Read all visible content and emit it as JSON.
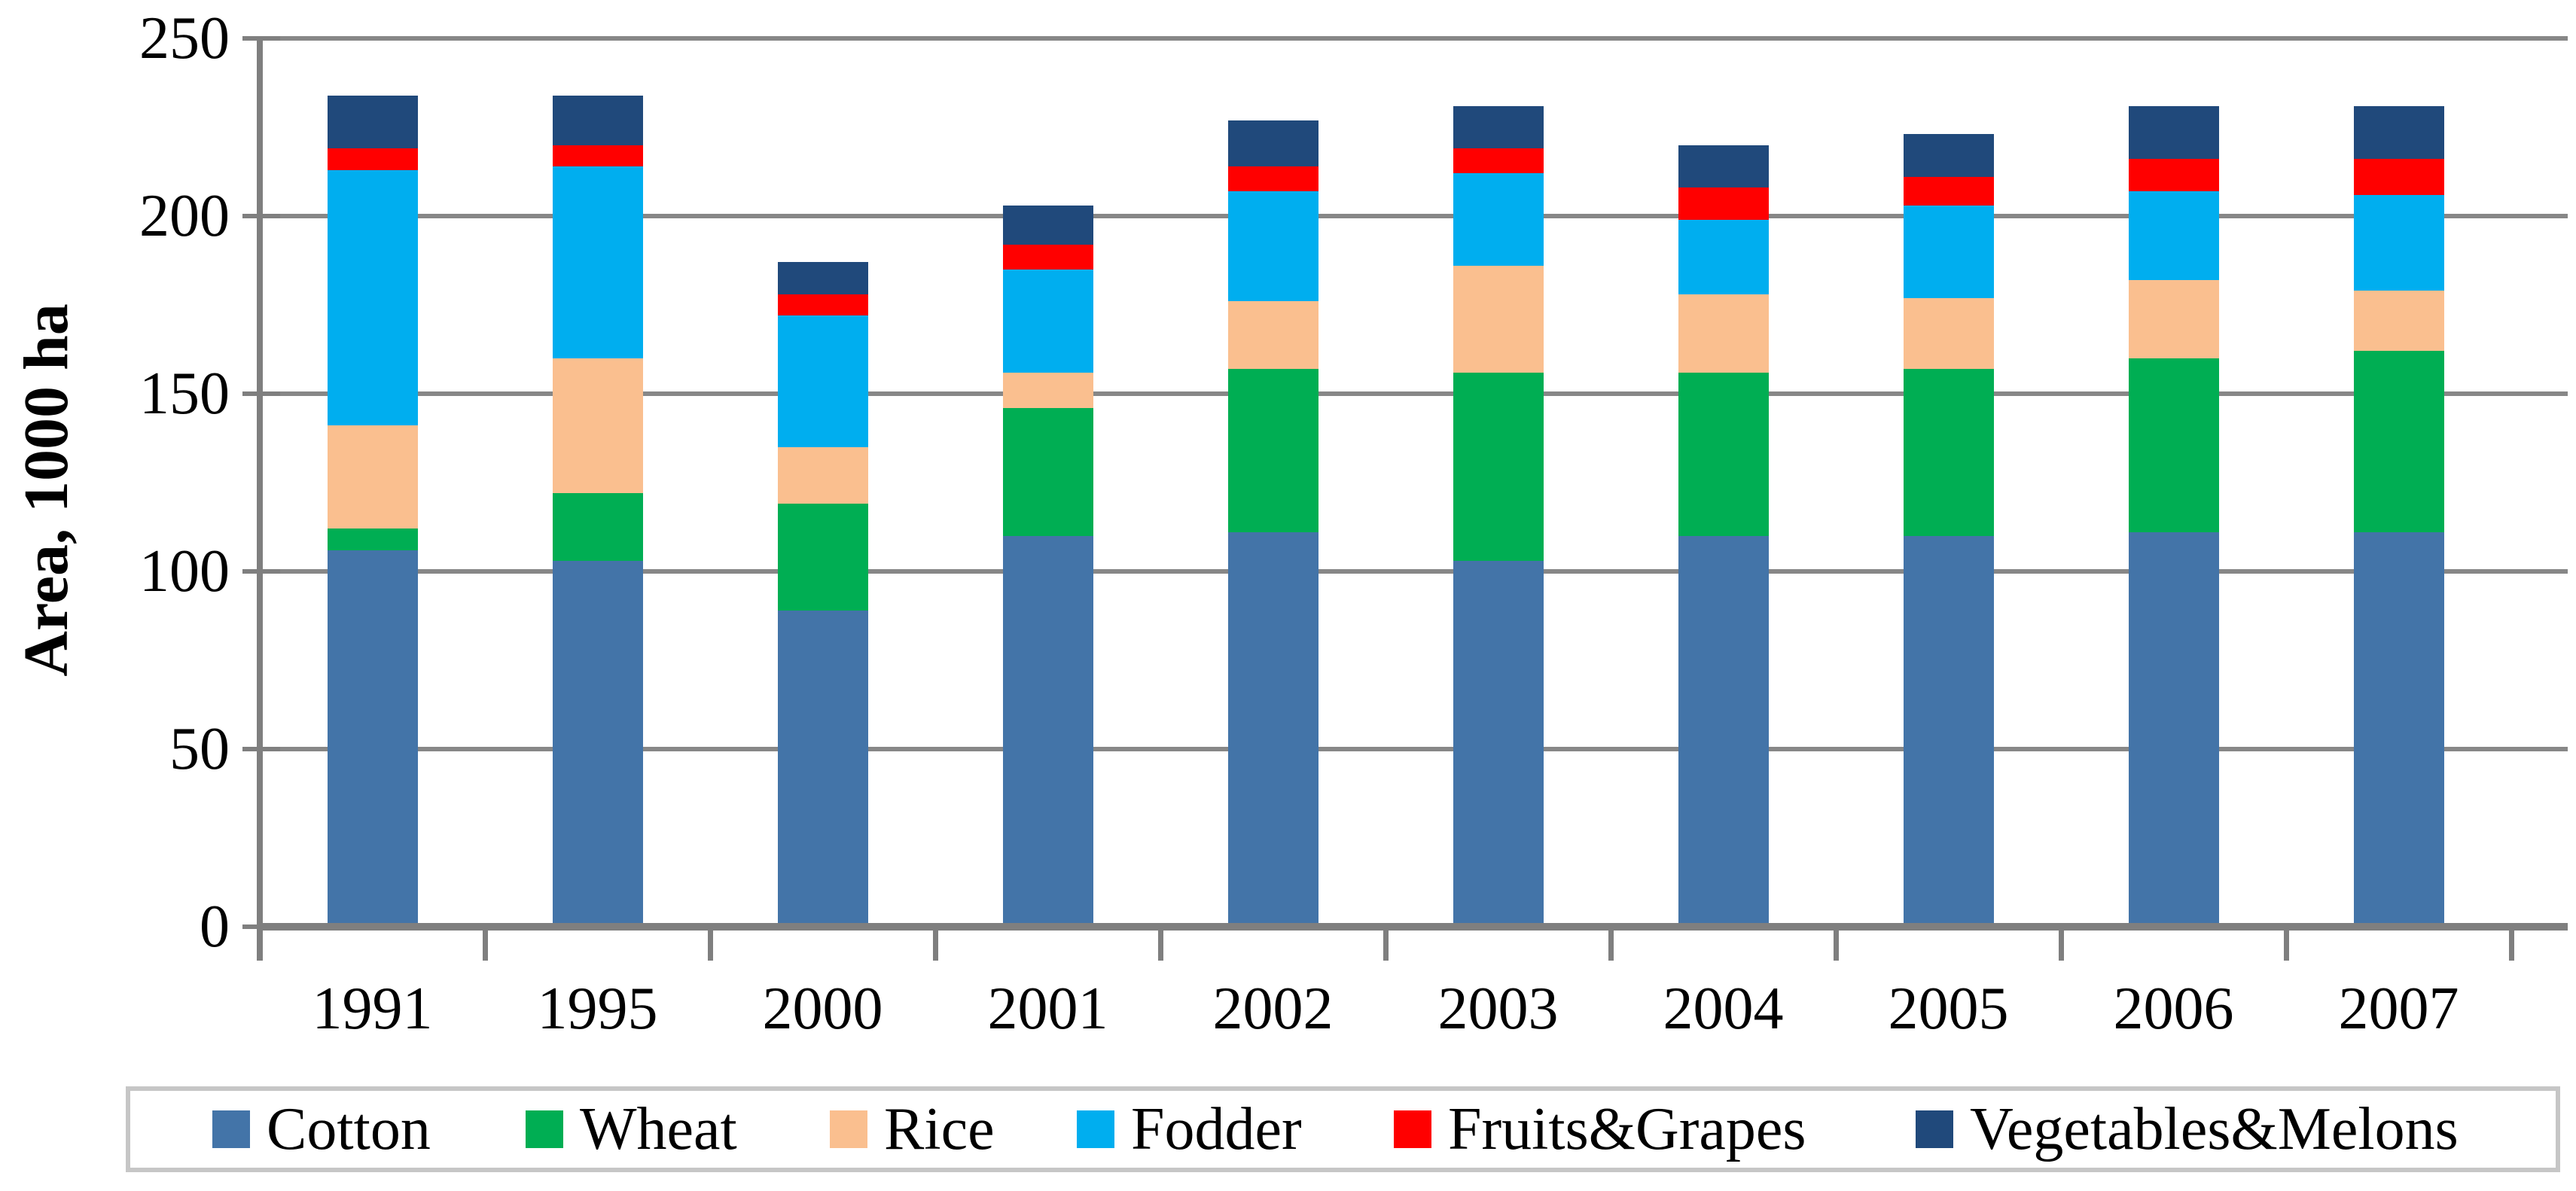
{
  "chart_data": {
    "type": "bar",
    "stacked": true,
    "title": "",
    "xlabel": "",
    "ylabel": "Area, 1000 ha",
    "ylim": [
      0,
      250
    ],
    "yticks": [
      0,
      50,
      100,
      150,
      200,
      250
    ],
    "grid": "horizontal",
    "legend_position": "bottom",
    "categories": [
      "1991",
      "1995",
      "2000",
      "2001",
      "2002",
      "2003",
      "2004",
      "2005",
      "2006",
      "2007"
    ],
    "series": [
      {
        "name": "Cotton",
        "color": "#4374A8",
        "values": [
          106,
          103,
          89,
          110,
          111,
          103,
          110,
          110,
          111,
          111
        ]
      },
      {
        "name": "Wheat",
        "color": "#00AE53",
        "values": [
          6,
          19,
          30,
          36,
          46,
          53,
          46,
          47,
          49,
          51
        ]
      },
      {
        "name": "Rice",
        "color": "#FABF8F",
        "values": [
          29,
          38,
          16,
          10,
          19,
          30,
          22,
          20,
          22,
          17
        ]
      },
      {
        "name": "Fodder",
        "color": "#00AEEF",
        "values": [
          72,
          54,
          37,
          29,
          31,
          26,
          21,
          26,
          25,
          27
        ]
      },
      {
        "name": "Fruits&Grapes",
        "color": "#FF0000",
        "values": [
          6,
          6,
          6,
          7,
          7,
          7,
          9,
          8,
          9,
          10
        ]
      },
      {
        "name": "Vegetables&Melons",
        "color": "#20497B",
        "values": [
          15,
          14,
          9,
          11,
          13,
          12,
          12,
          12,
          15,
          15
        ]
      }
    ],
    "totals": [
      234,
      234,
      187,
      203,
      227,
      231,
      220,
      223,
      231,
      231
    ],
    "axis_color": "#7F7F7F",
    "gridline_color": "#878787",
    "legend_border_color": "#C6C6C6",
    "text_color": "#000000"
  }
}
